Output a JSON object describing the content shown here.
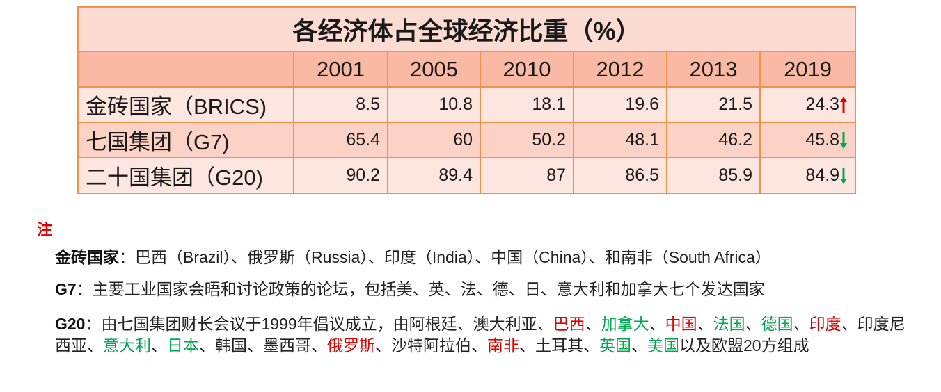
{
  "table": {
    "title": "各经济体占全球经济比重（%）",
    "years": [
      "2001",
      "2005",
      "2010",
      "2012",
      "2013",
      "2019"
    ],
    "rows": [
      {
        "label": "金砖国家（BRICS)",
        "values": [
          "8.5",
          "10.8",
          "18.1",
          "19.6",
          "21.5",
          "24.3"
        ],
        "trend": "up",
        "trend_color": "#e00000"
      },
      {
        "label": "七国集团（G7)",
        "values": [
          "65.4",
          "60",
          "50.2",
          "48.1",
          "46.2",
          "45.8"
        ],
        "trend": "down",
        "trend_color": "#00a650"
      },
      {
        "label": "二十国集团（G20)",
        "values": [
          "90.2",
          "89.4",
          "87",
          "86.5",
          "85.9",
          "84.9"
        ],
        "trend": "down",
        "trend_color": "#00a650"
      }
    ]
  },
  "notes": {
    "heading": "注",
    "brics": {
      "term": "金砖国家",
      "text": "：巴西（Brazil）、俄罗斯（Russia）、印度（India）、中国（China）、和南非（South Africa）"
    },
    "g7": {
      "term": "G7",
      "text": "：主要工业国家会晤和讨论政策的论坛，包括美、英、法、德、日、意大利和加拿大七个发达国家"
    },
    "g20": {
      "term": "G20",
      "intro": "：由七国集团财长会议于1999年倡议成立，由阿根廷、澳大利亚、",
      "sep": "、",
      "items": [
        {
          "text": "巴西",
          "color": "red"
        },
        {
          "text": "加拿大",
          "color": "green"
        },
        {
          "text": "中国",
          "color": "red"
        },
        {
          "text": "法国",
          "color": "green"
        },
        {
          "text": "德国",
          "color": "green"
        },
        {
          "text": "印度",
          "color": "red"
        },
        {
          "text": "印度尼西亚",
          "color": "none"
        },
        {
          "text": "意大利",
          "color": "green"
        },
        {
          "text": "日本",
          "color": "green"
        },
        {
          "text": "韩国",
          "color": "none"
        },
        {
          "text": "墨西哥",
          "color": "none"
        },
        {
          "text": "俄罗斯",
          "color": "red"
        },
        {
          "text": "沙特阿拉伯",
          "color": "none"
        },
        {
          "text": "南非",
          "color": "red"
        },
        {
          "text": "土耳其",
          "color": "none"
        },
        {
          "text": "英国",
          "color": "green"
        },
        {
          "text": "美国",
          "color": "green"
        }
      ],
      "outro": "以及欧盟20方组成"
    }
  }
}
